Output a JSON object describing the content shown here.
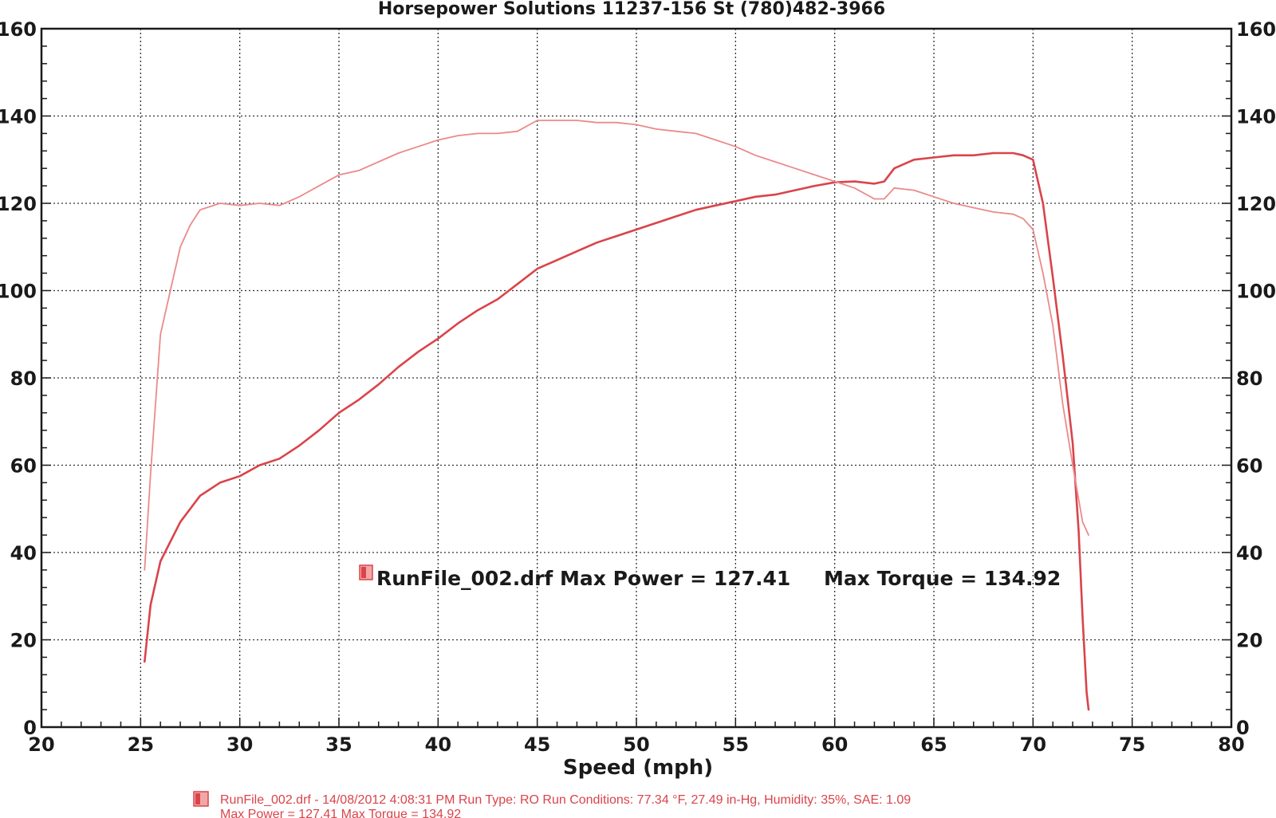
{
  "chart_data": {
    "type": "line",
    "title": "Horsepower Solutions 11237-156 St (780)482-3966",
    "xlabel": "Speed (mph)",
    "ylabel": "",
    "xlim": [
      20,
      80
    ],
    "ylim": [
      0,
      160
    ],
    "x_ticks": [
      "20",
      "25",
      "30",
      "35",
      "40",
      "45",
      "50",
      "55",
      "60",
      "65",
      "70",
      "75",
      "80"
    ],
    "y_ticks": [
      "0",
      "20",
      "40",
      "60",
      "80",
      "100",
      "120",
      "140",
      "160"
    ],
    "grid": true,
    "legend_position": "center",
    "legend_text": "RunFile_002.drf Max Power = 127.41",
    "legend_text_torque": "Max Torque = 134.92",
    "series": [
      {
        "color": "#d9444a",
        "points": [
          [
            25.2,
            15
          ],
          [
            25.5,
            28
          ],
          [
            26,
            38
          ],
          [
            27,
            47
          ],
          [
            28,
            53
          ],
          [
            29,
            56
          ],
          [
            30,
            57.5
          ],
          [
            31,
            60
          ],
          [
            32,
            61.5
          ],
          [
            33,
            64.5
          ],
          [
            34,
            68
          ],
          [
            35,
            72
          ],
          [
            36,
            75
          ],
          [
            37,
            78.5
          ],
          [
            38,
            82.5
          ],
          [
            39,
            86
          ],
          [
            40,
            89
          ],
          [
            41,
            92.5
          ],
          [
            42,
            95.5
          ],
          [
            43,
            98
          ],
          [
            44,
            101.5
          ],
          [
            45,
            105
          ],
          [
            46,
            107
          ],
          [
            47,
            109
          ],
          [
            48,
            111
          ],
          [
            49,
            112.5
          ],
          [
            50,
            114
          ],
          [
            51,
            115.5
          ],
          [
            52,
            117
          ],
          [
            53,
            118.5
          ],
          [
            54,
            119.5
          ],
          [
            55,
            120.5
          ],
          [
            56,
            121.5
          ],
          [
            57,
            122
          ],
          [
            58,
            123
          ],
          [
            59,
            124
          ],
          [
            60,
            124.8
          ],
          [
            61,
            125
          ],
          [
            62,
            124.5
          ],
          [
            62.5,
            125
          ],
          [
            63,
            128
          ],
          [
            64,
            130
          ],
          [
            65,
            130.5
          ],
          [
            66,
            131
          ],
          [
            67,
            131
          ],
          [
            68,
            131.5
          ],
          [
            69,
            131.5
          ],
          [
            69.5,
            131
          ],
          [
            70,
            130
          ],
          [
            70.5,
            120
          ],
          [
            71,
            103
          ],
          [
            71.5,
            85
          ],
          [
            72,
            65
          ],
          [
            72.3,
            45
          ],
          [
            72.5,
            25
          ],
          [
            72.7,
            8
          ],
          [
            72.8,
            4
          ]
        ]
      },
      {
        "color": "#eb8a8a",
        "points": [
          [
            25.2,
            36
          ],
          [
            25.5,
            58
          ],
          [
            26,
            90
          ],
          [
            26.5,
            100
          ],
          [
            27,
            110
          ],
          [
            27.5,
            115
          ],
          [
            28,
            118.5
          ],
          [
            29,
            120
          ],
          [
            30,
            119.5
          ],
          [
            31,
            120
          ],
          [
            32,
            119.5
          ],
          [
            33,
            121.5
          ],
          [
            34,
            124
          ],
          [
            35,
            126.5
          ],
          [
            36,
            127.5
          ],
          [
            37,
            129.5
          ],
          [
            38,
            131.5
          ],
          [
            39,
            133
          ],
          [
            40,
            134.5
          ],
          [
            41,
            135.5
          ],
          [
            42,
            136
          ],
          [
            43,
            136
          ],
          [
            44,
            136.5
          ],
          [
            45,
            139
          ],
          [
            46,
            139
          ],
          [
            47,
            139
          ],
          [
            48,
            138.5
          ],
          [
            49,
            138.5
          ],
          [
            50,
            138
          ],
          [
            51,
            137
          ],
          [
            52,
            136.5
          ],
          [
            53,
            136
          ],
          [
            54,
            134.5
          ],
          [
            55,
            133
          ],
          [
            56,
            131
          ],
          [
            57,
            129.5
          ],
          [
            58,
            128
          ],
          [
            59,
            126.5
          ],
          [
            60,
            125
          ],
          [
            61,
            123.5
          ],
          [
            62,
            121
          ],
          [
            62.5,
            121
          ],
          [
            63,
            123.5
          ],
          [
            64,
            123
          ],
          [
            65,
            121.5
          ],
          [
            66,
            120
          ],
          [
            67,
            119
          ],
          [
            68,
            118
          ],
          [
            69,
            117.5
          ],
          [
            69.5,
            116.5
          ],
          [
            70,
            114
          ],
          [
            70.5,
            104
          ],
          [
            71,
            92
          ],
          [
            71.5,
            74
          ],
          [
            72,
            60
          ],
          [
            72.5,
            47
          ],
          [
            72.8,
            44
          ]
        ]
      }
    ]
  },
  "footer": {
    "line1": "RunFile_002.drf - 14/08/2012 4:08:31 PM  Run Type: RO  Run Conditions: 77.34 °F, 27.49 in-Hg,  Humidity:  35%, SAE: 1.09",
    "line2": "Max Power = 127.41  Max Torque = 134.92"
  },
  "colors": {
    "accent": "#d9444a",
    "grid": "#333333"
  }
}
